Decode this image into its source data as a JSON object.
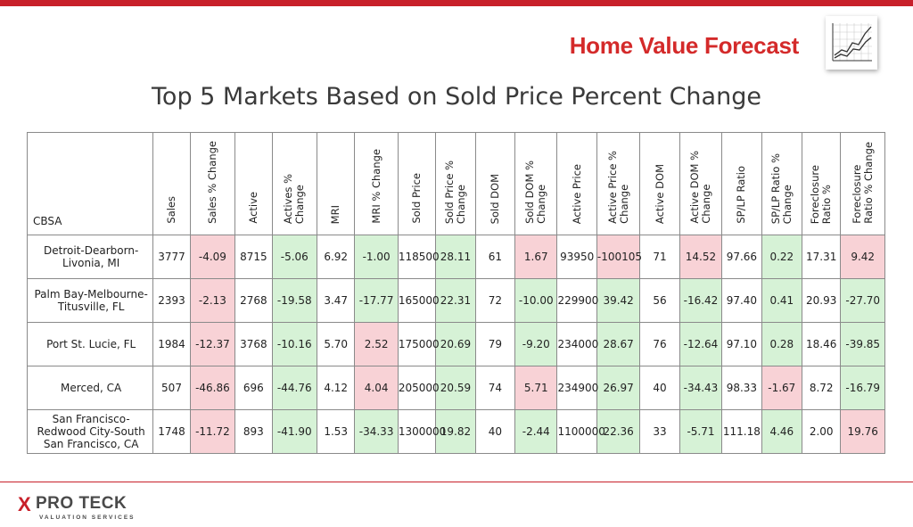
{
  "header": {
    "brand": "Home Value Forecast",
    "icon": "line-chart-icon",
    "accent_color": "#c8202a"
  },
  "title": "Top 5 Markets Based on Sold Price Percent Change",
  "table": {
    "first_column_header": "CBSA",
    "columns": [
      "Sales",
      "Sales % Change",
      "Active",
      "Actives %\nChange",
      "MRI",
      "MRI % Change",
      "Sold Price",
      "Sold Price %\nChange",
      "Sold DOM",
      "Sold DOM %\nChange",
      "Active Price",
      "Active Price %\nChange",
      "Active DOM",
      "Active DOM %\nChange",
      "SP/LP Ratio",
      "SP/LP Ratio %\nChange",
      "Foreclosure\nRatio %",
      "Foreclosure\nRatio % Change"
    ],
    "rows": [
      {
        "cbsa": "Detroit-Dearborn-\nLivonia, MI",
        "cells": [
          {
            "v": "3777",
            "h": ""
          },
          {
            "v": "-4.09",
            "h": "neg"
          },
          {
            "v": "8715",
            "h": ""
          },
          {
            "v": "-5.06",
            "h": "pos"
          },
          {
            "v": "6.92",
            "h": ""
          },
          {
            "v": "-1.00",
            "h": "pos"
          },
          {
            "v": "118500",
            "h": ""
          },
          {
            "v": "28.11",
            "h": "pos"
          },
          {
            "v": "61",
            "h": ""
          },
          {
            "v": "1.67",
            "h": "neg"
          },
          {
            "v": "93950",
            "h": ""
          },
          {
            "v": "-100105",
            "h": "neg"
          },
          {
            "v": "71",
            "h": ""
          },
          {
            "v": "14.52",
            "h": "neg"
          },
          {
            "v": "97.66",
            "h": ""
          },
          {
            "v": "0.22",
            "h": "pos"
          },
          {
            "v": "17.31",
            "h": ""
          },
          {
            "v": "9.42",
            "h": "neg"
          }
        ]
      },
      {
        "cbsa": "Palm Bay-Melbourne-\nTitusville, FL",
        "cells": [
          {
            "v": "2393",
            "h": ""
          },
          {
            "v": "-2.13",
            "h": "neg"
          },
          {
            "v": "2768",
            "h": ""
          },
          {
            "v": "-19.58",
            "h": "pos"
          },
          {
            "v": "3.47",
            "h": ""
          },
          {
            "v": "-17.77",
            "h": "pos"
          },
          {
            "v": "165000",
            "h": ""
          },
          {
            "v": "22.31",
            "h": "pos"
          },
          {
            "v": "72",
            "h": ""
          },
          {
            "v": "-10.00",
            "h": "pos"
          },
          {
            "v": "229900",
            "h": ""
          },
          {
            "v": "39.42",
            "h": "pos"
          },
          {
            "v": "56",
            "h": ""
          },
          {
            "v": "-16.42",
            "h": "pos"
          },
          {
            "v": "97.40",
            "h": ""
          },
          {
            "v": "0.41",
            "h": "pos"
          },
          {
            "v": "20.93",
            "h": ""
          },
          {
            "v": "-27.70",
            "h": "pos"
          }
        ]
      },
      {
        "cbsa": "Port St. Lucie, FL",
        "cells": [
          {
            "v": "1984",
            "h": ""
          },
          {
            "v": "-12.37",
            "h": "neg"
          },
          {
            "v": "3768",
            "h": ""
          },
          {
            "v": "-10.16",
            "h": "pos"
          },
          {
            "v": "5.70",
            "h": ""
          },
          {
            "v": "2.52",
            "h": "neg"
          },
          {
            "v": "175000",
            "h": ""
          },
          {
            "v": "20.69",
            "h": "pos"
          },
          {
            "v": "79",
            "h": ""
          },
          {
            "v": "-9.20",
            "h": "pos"
          },
          {
            "v": "234000",
            "h": "",
            "small": true
          },
          {
            "v": "28.67",
            "h": "pos"
          },
          {
            "v": "76",
            "h": ""
          },
          {
            "v": "-12.64",
            "h": "pos"
          },
          {
            "v": "97.10",
            "h": ""
          },
          {
            "v": "0.28",
            "h": "pos"
          },
          {
            "v": "18.46",
            "h": ""
          },
          {
            "v": "-39.85",
            "h": "pos"
          }
        ]
      },
      {
        "cbsa": "Merced, CA",
        "cells": [
          {
            "v": "507",
            "h": ""
          },
          {
            "v": "-46.86",
            "h": "neg"
          },
          {
            "v": "696",
            "h": ""
          },
          {
            "v": "-44.76",
            "h": "pos"
          },
          {
            "v": "4.12",
            "h": ""
          },
          {
            "v": "4.04",
            "h": "neg"
          },
          {
            "v": "205000",
            "h": "",
            "small": true
          },
          {
            "v": "20.59",
            "h": "pos"
          },
          {
            "v": "74",
            "h": ""
          },
          {
            "v": "5.71",
            "h": "neg"
          },
          {
            "v": "234900",
            "h": "",
            "small": true
          },
          {
            "v": "26.97",
            "h": "pos"
          },
          {
            "v": "40",
            "h": ""
          },
          {
            "v": "-34.43",
            "h": "pos"
          },
          {
            "v": "98.33",
            "h": ""
          },
          {
            "v": "-1.67",
            "h": "neg"
          },
          {
            "v": "8.72",
            "h": ""
          },
          {
            "v": "-16.79",
            "h": "pos"
          }
        ]
      },
      {
        "cbsa": "San Francisco-\nRedwood City-South\nSan Francisco, CA",
        "cells": [
          {
            "v": "1748",
            "h": ""
          },
          {
            "v": "-11.72",
            "h": "neg"
          },
          {
            "v": "893",
            "h": ""
          },
          {
            "v": "-41.90",
            "h": "pos"
          },
          {
            "v": "1.53",
            "h": ""
          },
          {
            "v": "-34.33",
            "h": "pos"
          },
          {
            "v": "1300000",
            "h": "",
            "small": true
          },
          {
            "v": "19.82",
            "h": "pos"
          },
          {
            "v": "40",
            "h": ""
          },
          {
            "v": "-2.44",
            "h": "pos"
          },
          {
            "v": "1100000",
            "h": "",
            "small": true
          },
          {
            "v": "22.36",
            "h": "pos"
          },
          {
            "v": "33",
            "h": ""
          },
          {
            "v": "-5.71",
            "h": "pos"
          },
          {
            "v": "111.18",
            "h": ""
          },
          {
            "v": "4.46",
            "h": "pos"
          },
          {
            "v": "2.00",
            "h": ""
          },
          {
            "v": "19.76",
            "h": "neg"
          }
        ]
      }
    ]
  },
  "colors": {
    "positive_highlight": "#d6f2d6",
    "negative_highlight": "#f8d2d6"
  },
  "footer": {
    "logo_mark": "X",
    "logo_name": "PRO TECK",
    "logo_sub": "VALUATION SERVICES"
  }
}
